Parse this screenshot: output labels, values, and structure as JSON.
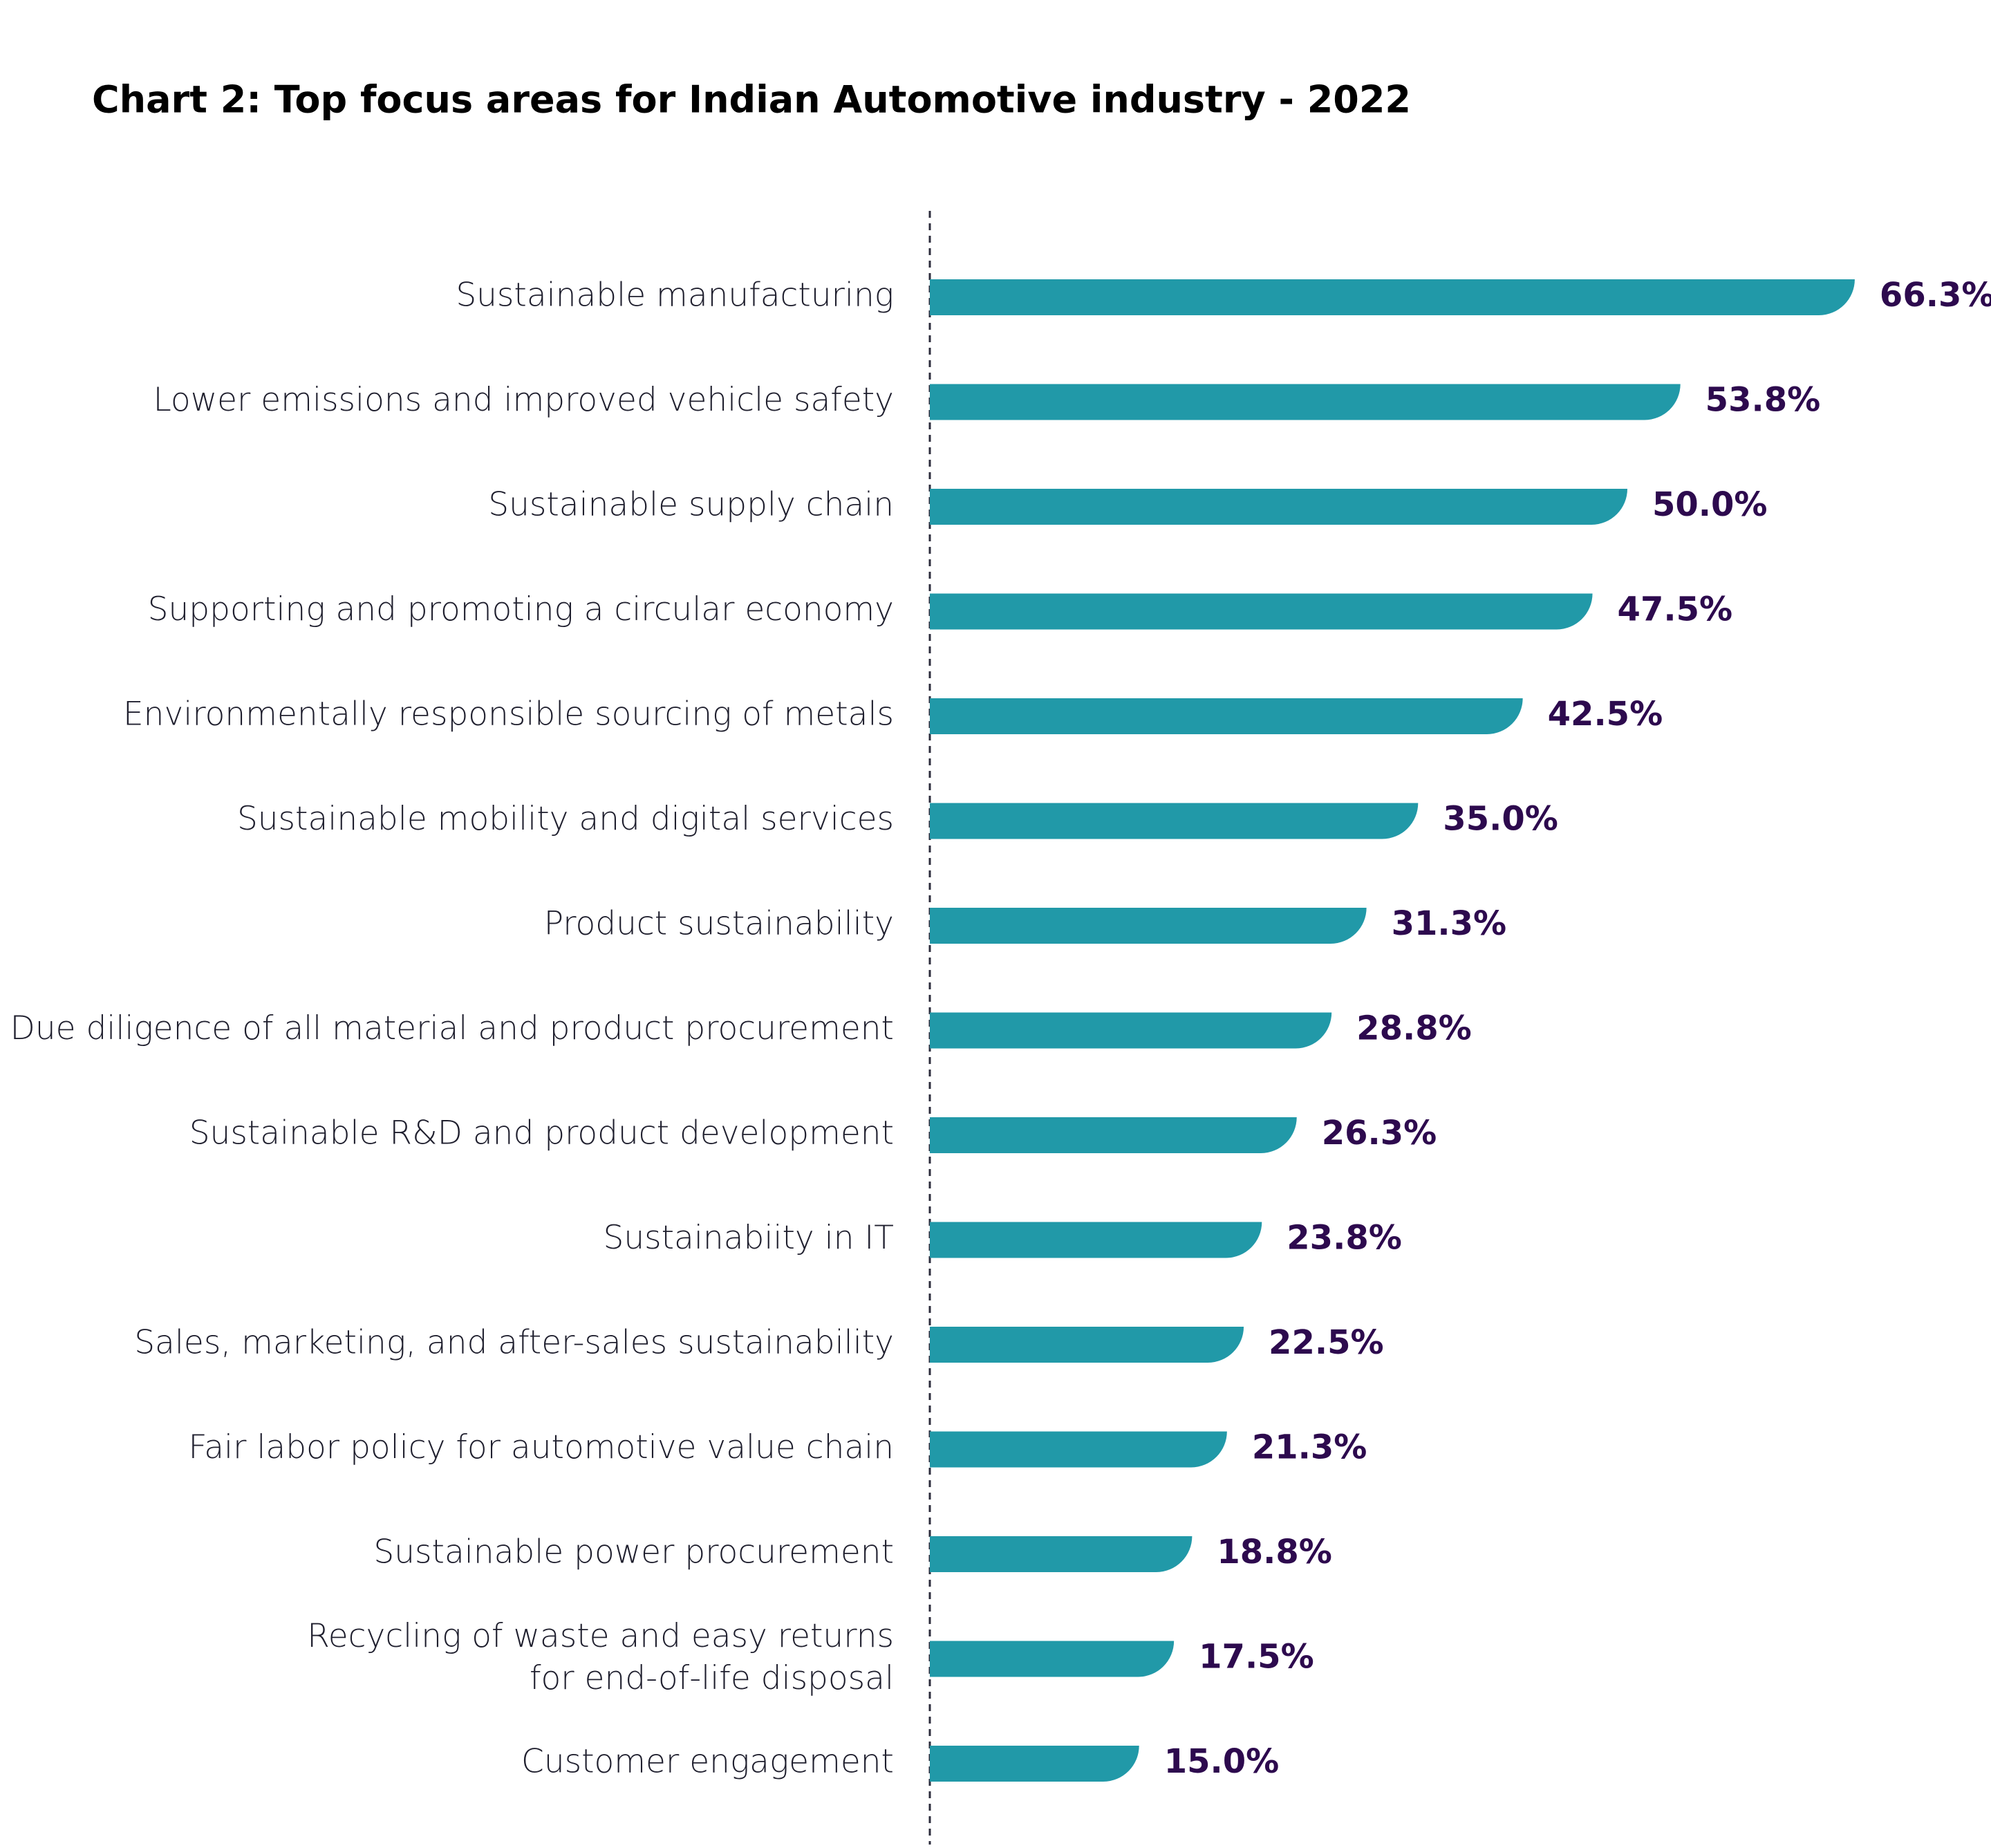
{
  "chart_data": {
    "type": "hbar",
    "title": "Chart 2: Top focus areas for Indian Automotive industry - 2022",
    "categories": [
      "Sustainable manufacturing",
      "Lower emissions and improved vehicle safety",
      "Sustainable supply chain",
      "Supporting and promoting a circular economy",
      "Environmentally responsible sourcing of metals",
      "Sustainable mobility and digital services",
      "Product sustainability",
      "Due diligence of all material and product procurement",
      "Sustainable R&D and product development",
      "Sustainabiity in IT",
      "Sales, marketing, and after-sales sustainability",
      "Fair labor policy for automotive value chain",
      "Sustainable power procurement",
      "Recycling of waste and easy returns\nfor end-of-life disposal",
      "Customer engagement"
    ],
    "values": [
      66.3,
      53.8,
      50.0,
      47.5,
      42.5,
      35.0,
      31.3,
      28.8,
      26.3,
      23.8,
      22.5,
      21.3,
      18.8,
      17.5,
      15.0
    ],
    "value_labels": [
      "66.3%",
      "53.8%",
      "50.0%",
      "47.5%",
      "42.5%",
      "35.0%",
      "31.3%",
      "28.8%",
      "26.3%",
      "23.8%",
      "22.5%",
      "21.3%",
      "18.8%",
      "17.5%",
      "15.0%"
    ],
    "color": "#2199a8",
    "label_color": "#2d0a4e"
  }
}
